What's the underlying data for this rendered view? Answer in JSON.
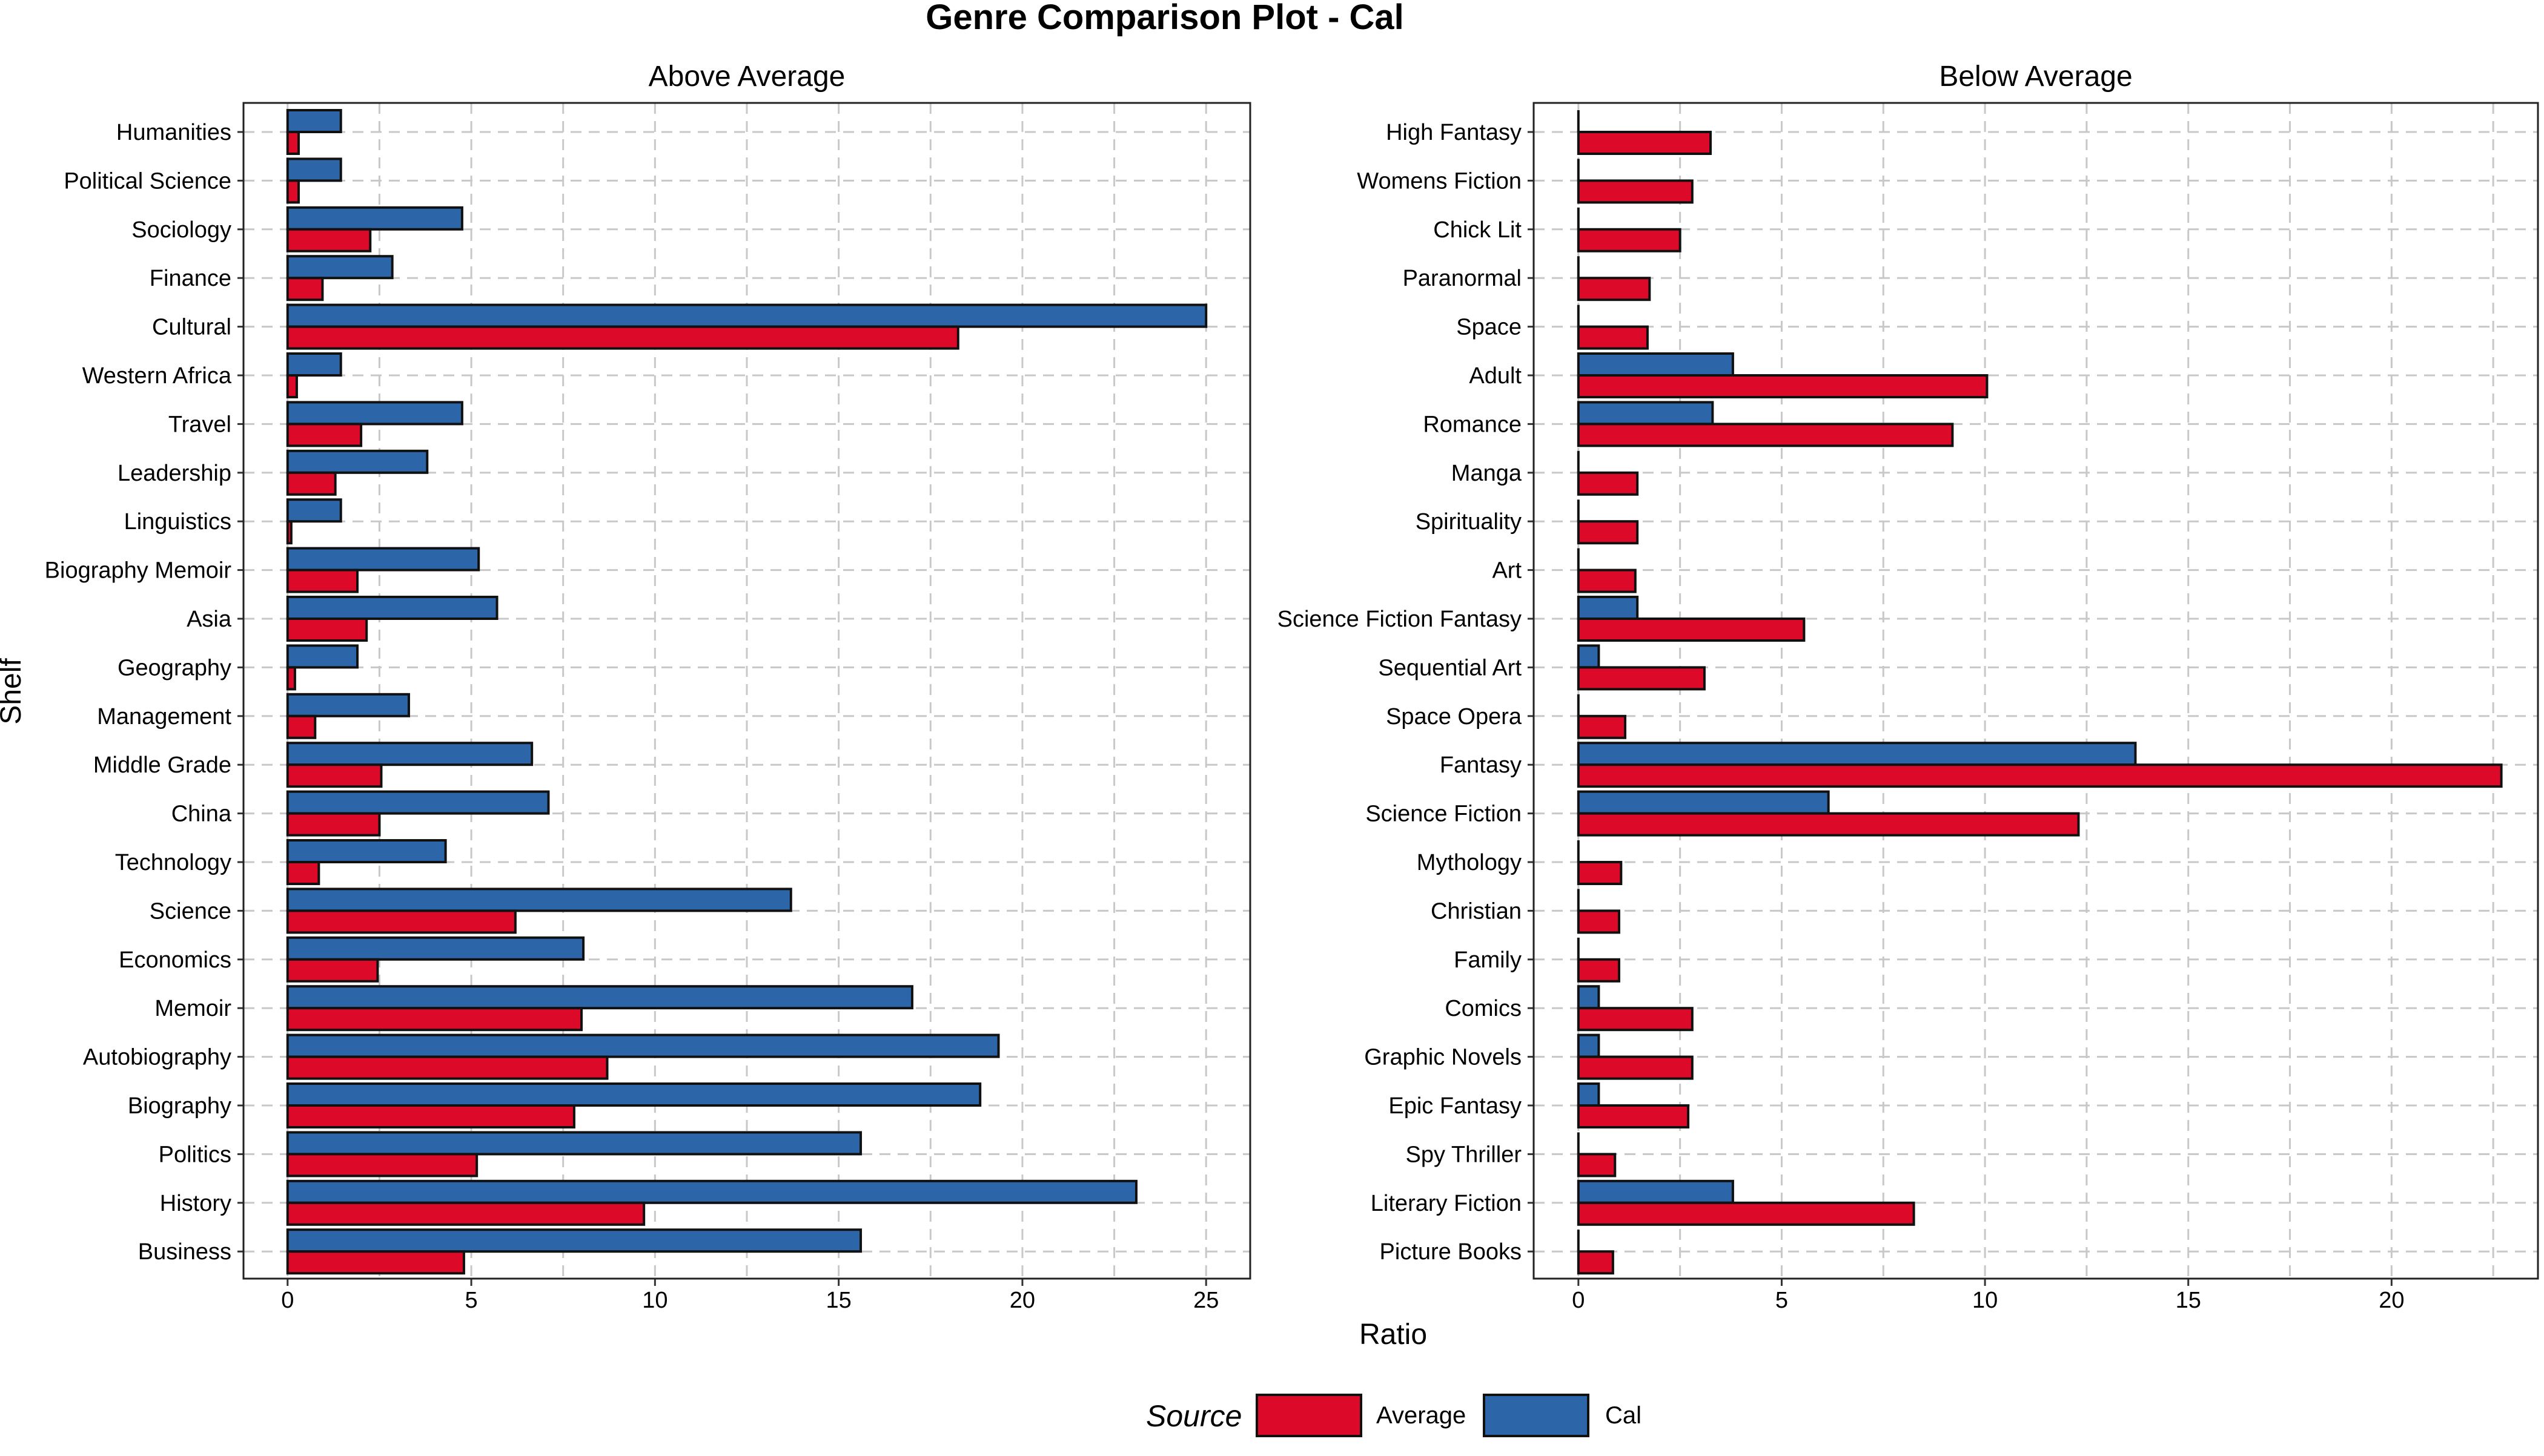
{
  "chart_data": {
    "type": "bar",
    "orientation": "horizontal",
    "title": "Genre Comparison Plot - Cal",
    "xlabel": "Ratio",
    "ylabel": "Shelf",
    "grid": true,
    "legend": {
      "title": "Source",
      "position": "bottom",
      "entries": [
        {
          "name": "Average",
          "color": "#dc0a28"
        },
        {
          "name": "Cal",
          "color": "#2d66a8"
        }
      ]
    },
    "panels": [
      {
        "name": "Above Average",
        "xlim": [
          -1.2,
          26.2
        ],
        "xticks": [
          0,
          5,
          10,
          15,
          20,
          25
        ],
        "categories": [
          "Humanities",
          "Political Science",
          "Sociology",
          "Finance",
          "Cultural",
          "Western Africa",
          "Travel",
          "Leadership",
          "Linguistics",
          "Biography Memoir",
          "Asia",
          "Geography",
          "Management",
          "Middle Grade",
          "China",
          "Technology",
          "Science",
          "Economics",
          "Memoir",
          "Autobiography",
          "Biography",
          "Politics",
          "History",
          "Business"
        ],
        "series": [
          {
            "name": "Cal",
            "values": [
              1.45,
              1.45,
              4.75,
              2.85,
              25.0,
              1.45,
              4.75,
              3.8,
              1.45,
              5.2,
              5.7,
              1.9,
              3.3,
              6.65,
              7.1,
              4.3,
              13.7,
              8.05,
              17.0,
              19.35,
              18.85,
              15.6,
              23.1,
              15.6
            ]
          },
          {
            "name": "Average",
            "values": [
              0.3,
              0.3,
              2.25,
              0.95,
              18.25,
              0.25,
              2.0,
              1.3,
              0.1,
              1.9,
              2.15,
              0.2,
              0.75,
              2.55,
              2.5,
              0.85,
              6.2,
              2.45,
              8.0,
              8.7,
              7.8,
              5.15,
              9.7,
              4.8
            ]
          }
        ]
      },
      {
        "name": "Below Average",
        "xlim": [
          -1.1,
          23.6
        ],
        "xticks": [
          0,
          5,
          10,
          15,
          20
        ],
        "categories": [
          "High Fantasy",
          "Womens Fiction",
          "Chick Lit",
          "Paranormal",
          "Space",
          "Adult",
          "Romance",
          "Manga",
          "Spirituality",
          "Art",
          "Science Fiction Fantasy",
          "Sequential Art",
          "Space Opera",
          "Fantasy",
          "Science Fiction",
          "Mythology",
          "Christian",
          "Family",
          "Comics",
          "Graphic Novels",
          "Epic Fantasy",
          "Spy Thriller",
          "Literary Fiction",
          "Picture Books"
        ],
        "series": [
          {
            "name": "Cal",
            "values": [
              0.0,
              0.0,
              0.0,
              0.0,
              0.0,
              3.8,
              3.3,
              0.0,
              0.0,
              0.0,
              1.45,
              0.5,
              0.0,
              13.7,
              6.15,
              0.0,
              0.0,
              0.0,
              0.5,
              0.5,
              0.5,
              0.0,
              3.8,
              0.0
            ]
          },
          {
            "name": "Average",
            "values": [
              3.25,
              2.8,
              2.5,
              1.75,
              1.7,
              10.05,
              9.2,
              1.45,
              1.45,
              1.4,
              5.55,
              3.1,
              1.15,
              22.7,
              12.3,
              1.05,
              1.0,
              1.0,
              2.8,
              2.8,
              2.7,
              0.9,
              8.25,
              0.85
            ]
          }
        ]
      }
    ]
  }
}
